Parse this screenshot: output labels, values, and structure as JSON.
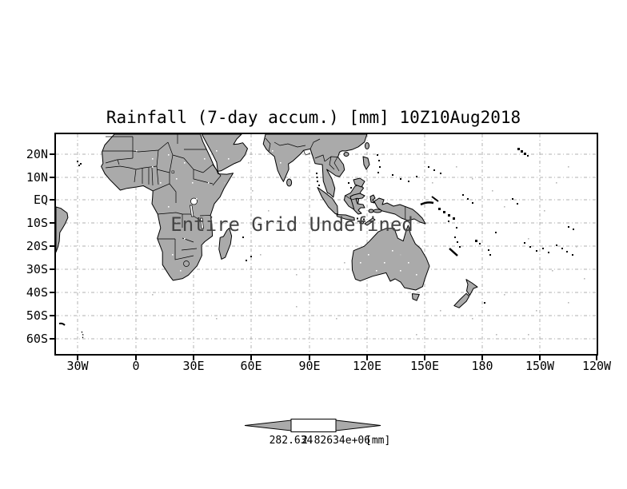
{
  "title": "Rainfall (7-day accum.) [mm] 10Z10Aug2018",
  "annotation": "Entire Grid Undefined",
  "colorbar": {
    "min_label": "282.634",
    "max_label": "2.82634e+06",
    "units_label": "[mm]"
  },
  "chart_data": {
    "type": "map",
    "title": "Rainfall (7-day accum.) [mm] 10Z10Aug2018",
    "x_tick_labels": [
      "30W",
      "0",
      "30E",
      "60E",
      "90E",
      "120E",
      "150E",
      "180",
      "150W",
      "120W"
    ],
    "y_tick_labels": [
      "20N",
      "10N",
      "EQ",
      "10S",
      "20S",
      "30S",
      "40S",
      "50S",
      "60S"
    ],
    "annotation": "Entire Grid Undefined",
    "colorbar_min": "282.634",
    "colorbar_max": "2.82634e+06",
    "units": "[mm]",
    "grid": true,
    "land_color": "#aaaaaa",
    "gridline_color": "#b2b2b2",
    "note": "No rainfall values shaded; plot reports entire grid undefined"
  }
}
